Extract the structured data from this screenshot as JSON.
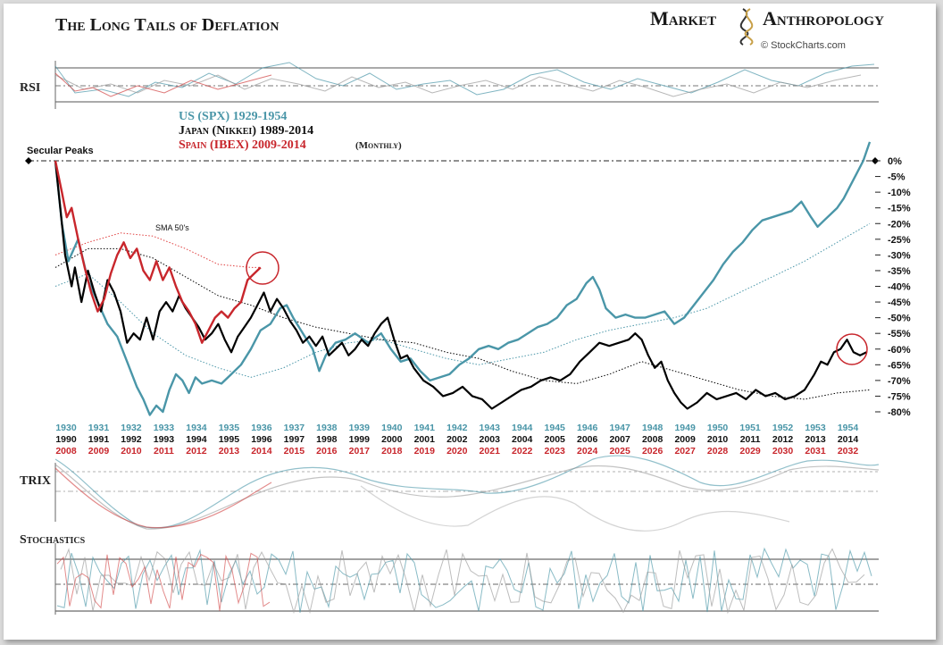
{
  "header": {
    "title": "The Long Tails of Deflation",
    "brand_left": "Market",
    "brand_right": "Anthropology",
    "source": "© StockCharts.com"
  },
  "panels": {
    "rsi": "RSI",
    "trix": "TRIX",
    "stochastics": "Stochastics"
  },
  "legend": {
    "us": "US (SPX) 1929-1954",
    "japan": "Japan (Nikkei) 1989-2014",
    "spain": "Spain (IBEX) 2009-2014",
    "freq": "(Monthly)",
    "secular": "Secular Peaks",
    "sma": "SMA 50's"
  },
  "colors": {
    "us": "#4a96a8",
    "japan": "#000000",
    "spain": "#c8262c",
    "sma_us": "#4a96a8",
    "sma_japan": "#000000",
    "sma_spain": "#e04040"
  },
  "chart_data": {
    "type": "line",
    "ylabel": "",
    "y_ticks": [
      "0%",
      "-5%",
      "-10%",
      "-15%",
      "-20%",
      "-25%",
      "-30%",
      "-35%",
      "-40%",
      "-45%",
      "-50%",
      "-55%",
      "-60%",
      "-65%",
      "-70%",
      "-75%",
      "-80%"
    ],
    "ylim": [
      -80,
      0
    ],
    "x_axis_us": [
      "1930",
      "1931",
      "1932",
      "1933",
      "1934",
      "1935",
      "1936",
      "1937",
      "1938",
      "1939",
      "1940",
      "1941",
      "1942",
      "1943",
      "1944",
      "1945",
      "1946",
      "1947",
      "1948",
      "1949",
      "1950",
      "1951",
      "1952",
      "1953",
      "1954"
    ],
    "x_axis_japan": [
      "1990",
      "1991",
      "1992",
      "1993",
      "1994",
      "1995",
      "1996",
      "1997",
      "1998",
      "1999",
      "2000",
      "2001",
      "2002",
      "2003",
      "2004",
      "2005",
      "2006",
      "2007",
      "2008",
      "2009",
      "2010",
      "2011",
      "2012",
      "2013",
      "2014"
    ],
    "x_axis_spain": [
      "2008",
      "2009",
      "2010",
      "2011",
      "2012",
      "2013",
      "2014",
      "2015",
      "2016",
      "2017",
      "2018",
      "2019",
      "2020",
      "2021",
      "2022",
      "2023",
      "2024",
      "2025",
      "2026",
      "2027",
      "2028",
      "2029",
      "2030",
      "2031",
      "2032"
    ],
    "series": [
      {
        "name": "US (SPX) 1929-1954",
        "points": [
          [
            0,
            0
          ],
          [
            0.2,
            -20
          ],
          [
            0.4,
            -32
          ],
          [
            0.7,
            -25
          ],
          [
            1.0,
            -38
          ],
          [
            1.3,
            -45
          ],
          [
            1.6,
            -52
          ],
          [
            1.9,
            -56
          ],
          [
            2.2,
            -64
          ],
          [
            2.5,
            -72
          ],
          [
            2.7,
            -76
          ],
          [
            2.9,
            -81
          ],
          [
            3.1,
            -78
          ],
          [
            3.3,
            -80
          ],
          [
            3.5,
            -73
          ],
          [
            3.7,
            -68
          ],
          [
            3.9,
            -70
          ],
          [
            4.1,
            -74
          ],
          [
            4.3,
            -69
          ],
          [
            4.5,
            -71
          ],
          [
            4.8,
            -70
          ],
          [
            5.1,
            -71
          ],
          [
            5.4,
            -68
          ],
          [
            5.7,
            -65
          ],
          [
            6.0,
            -60
          ],
          [
            6.3,
            -54
          ],
          [
            6.6,
            -52
          ],
          [
            6.9,
            -47
          ],
          [
            7.1,
            -46
          ],
          [
            7.3,
            -50
          ],
          [
            7.6,
            -55
          ],
          [
            7.9,
            -60
          ],
          [
            8.1,
            -67
          ],
          [
            8.3,
            -62
          ],
          [
            8.6,
            -58
          ],
          [
            8.9,
            -57
          ],
          [
            9.2,
            -55
          ],
          [
            9.6,
            -58
          ],
          [
            10.0,
            -55
          ],
          [
            10.3,
            -60
          ],
          [
            10.6,
            -64
          ],
          [
            10.9,
            -63
          ],
          [
            11.2,
            -67
          ],
          [
            11.5,
            -70
          ],
          [
            11.8,
            -69
          ],
          [
            12.1,
            -68
          ],
          [
            12.4,
            -65
          ],
          [
            12.7,
            -63
          ],
          [
            13.0,
            -60
          ],
          [
            13.3,
            -59
          ],
          [
            13.6,
            -60
          ],
          [
            13.9,
            -58
          ],
          [
            14.2,
            -57
          ],
          [
            14.5,
            -55
          ],
          [
            14.8,
            -53
          ],
          [
            15.1,
            -52
          ],
          [
            15.4,
            -50
          ],
          [
            15.7,
            -46
          ],
          [
            16.0,
            -44
          ],
          [
            16.3,
            -39
          ],
          [
            16.5,
            -37
          ],
          [
            16.7,
            -41
          ],
          [
            16.9,
            -47
          ],
          [
            17.2,
            -50
          ],
          [
            17.5,
            -49
          ],
          [
            17.8,
            -50
          ],
          [
            18.1,
            -50
          ],
          [
            18.4,
            -49
          ],
          [
            18.7,
            -48
          ],
          [
            19.0,
            -52
          ],
          [
            19.3,
            -50
          ],
          [
            19.6,
            -46
          ],
          [
            19.9,
            -42
          ],
          [
            20.2,
            -38
          ],
          [
            20.5,
            -33
          ],
          [
            20.8,
            -29
          ],
          [
            21.1,
            -26
          ],
          [
            21.4,
            -22
          ],
          [
            21.7,
            -19
          ],
          [
            22.0,
            -18
          ],
          [
            22.3,
            -17
          ],
          [
            22.6,
            -16
          ],
          [
            22.9,
            -13
          ],
          [
            23.2,
            -18
          ],
          [
            23.4,
            -21
          ],
          [
            23.6,
            -19
          ],
          [
            23.8,
            -17
          ],
          [
            24.0,
            -15
          ],
          [
            24.2,
            -12
          ],
          [
            24.4,
            -8
          ],
          [
            24.6,
            -4
          ],
          [
            24.8,
            0
          ],
          [
            25.0,
            6
          ]
        ]
      },
      {
        "name": "Japan (Nikkei) 1989-2014",
        "points": [
          [
            0,
            0
          ],
          [
            0.15,
            -15
          ],
          [
            0.3,
            -30
          ],
          [
            0.5,
            -40
          ],
          [
            0.6,
            -34
          ],
          [
            0.8,
            -45
          ],
          [
            1.0,
            -35
          ],
          [
            1.2,
            -42
          ],
          [
            1.4,
            -48
          ],
          [
            1.6,
            -38
          ],
          [
            1.8,
            -42
          ],
          [
            2.0,
            -48
          ],
          [
            2.2,
            -58
          ],
          [
            2.4,
            -55
          ],
          [
            2.6,
            -57
          ],
          [
            2.8,
            -50
          ],
          [
            3.0,
            -57
          ],
          [
            3.2,
            -48
          ],
          [
            3.4,
            -45
          ],
          [
            3.6,
            -48
          ],
          [
            3.8,
            -43
          ],
          [
            4.0,
            -47
          ],
          [
            4.2,
            -50
          ],
          [
            4.4,
            -53
          ],
          [
            4.6,
            -57
          ],
          [
            4.8,
            -55
          ],
          [
            5.0,
            -52
          ],
          [
            5.2,
            -57
          ],
          [
            5.4,
            -61
          ],
          [
            5.6,
            -56
          ],
          [
            5.8,
            -53
          ],
          [
            6.0,
            -50
          ],
          [
            6.2,
            -46
          ],
          [
            6.4,
            -42
          ],
          [
            6.6,
            -48
          ],
          [
            6.8,
            -44
          ],
          [
            7.0,
            -47
          ],
          [
            7.2,
            -51
          ],
          [
            7.4,
            -54
          ],
          [
            7.6,
            -58
          ],
          [
            7.8,
            -56
          ],
          [
            8.0,
            -59
          ],
          [
            8.2,
            -56
          ],
          [
            8.4,
            -62
          ],
          [
            8.6,
            -60
          ],
          [
            8.8,
            -58
          ],
          [
            9.0,
            -62
          ],
          [
            9.2,
            -60
          ],
          [
            9.4,
            -57
          ],
          [
            9.6,
            -59
          ],
          [
            9.8,
            -55
          ],
          [
            10.0,
            -52
          ],
          [
            10.2,
            -50
          ],
          [
            10.4,
            -57
          ],
          [
            10.6,
            -63
          ],
          [
            10.8,
            -62
          ],
          [
            11.0,
            -66
          ],
          [
            11.3,
            -70
          ],
          [
            11.6,
            -72
          ],
          [
            11.9,
            -75
          ],
          [
            12.2,
            -74
          ],
          [
            12.5,
            -72
          ],
          [
            12.8,
            -75
          ],
          [
            13.1,
            -76
          ],
          [
            13.4,
            -79
          ],
          [
            13.7,
            -77
          ],
          [
            14.0,
            -75
          ],
          [
            14.3,
            -73
          ],
          [
            14.6,
            -72
          ],
          [
            14.9,
            -70
          ],
          [
            15.2,
            -69
          ],
          [
            15.5,
            -70
          ],
          [
            15.8,
            -68
          ],
          [
            16.1,
            -64
          ],
          [
            16.4,
            -61
          ],
          [
            16.7,
            -58
          ],
          [
            17.0,
            -59
          ],
          [
            17.3,
            -58
          ],
          [
            17.6,
            -57
          ],
          [
            17.8,
            -55
          ],
          [
            18.0,
            -57
          ],
          [
            18.2,
            -62
          ],
          [
            18.4,
            -66
          ],
          [
            18.6,
            -64
          ],
          [
            18.8,
            -70
          ],
          [
            19.0,
            -74
          ],
          [
            19.2,
            -77
          ],
          [
            19.4,
            -79
          ],
          [
            19.7,
            -77
          ],
          [
            20.0,
            -74
          ],
          [
            20.3,
            -76
          ],
          [
            20.6,
            -75
          ],
          [
            20.9,
            -74
          ],
          [
            21.2,
            -76
          ],
          [
            21.5,
            -73
          ],
          [
            21.8,
            -75
          ],
          [
            22.1,
            -74
          ],
          [
            22.4,
            -76
          ],
          [
            22.7,
            -75
          ],
          [
            23.0,
            -73
          ],
          [
            23.3,
            -68
          ],
          [
            23.5,
            -64
          ],
          [
            23.7,
            -65
          ],
          [
            23.9,
            -61
          ],
          [
            24.1,
            -60
          ],
          [
            24.3,
            -57
          ],
          [
            24.5,
            -61
          ],
          [
            24.7,
            -62
          ],
          [
            24.9,
            -61
          ]
        ]
      },
      {
        "name": "Spain (IBEX) 2009-2014",
        "points": [
          [
            0,
            0
          ],
          [
            0.2,
            -10
          ],
          [
            0.35,
            -18
          ],
          [
            0.5,
            -15
          ],
          [
            0.7,
            -25
          ],
          [
            0.9,
            -34
          ],
          [
            1.1,
            -42
          ],
          [
            1.3,
            -48
          ],
          [
            1.5,
            -44
          ],
          [
            1.7,
            -36
          ],
          [
            1.9,
            -30
          ],
          [
            2.1,
            -26
          ],
          [
            2.3,
            -31
          ],
          [
            2.5,
            -28
          ],
          [
            2.7,
            -35
          ],
          [
            2.9,
            -38
          ],
          [
            3.1,
            -32
          ],
          [
            3.3,
            -38
          ],
          [
            3.5,
            -34
          ],
          [
            3.7,
            -40
          ],
          [
            3.9,
            -45
          ],
          [
            4.1,
            -48
          ],
          [
            4.3,
            -52
          ],
          [
            4.5,
            -58
          ],
          [
            4.7,
            -54
          ],
          [
            4.9,
            -50
          ],
          [
            5.1,
            -48
          ],
          [
            5.3,
            -50
          ],
          [
            5.5,
            -47
          ],
          [
            5.7,
            -45
          ],
          [
            5.9,
            -38
          ],
          [
            6.1,
            -36
          ],
          [
            6.3,
            -34
          ]
        ]
      },
      {
        "name": "SMA US",
        "points": [
          [
            0,
            -40
          ],
          [
            1,
            -36
          ],
          [
            2,
            -45
          ],
          [
            3,
            -55
          ],
          [
            4,
            -62
          ],
          [
            5,
            -66
          ],
          [
            6,
            -69
          ],
          [
            7,
            -66
          ],
          [
            8,
            -61
          ],
          [
            9,
            -58
          ],
          [
            10,
            -57
          ],
          [
            11,
            -60
          ],
          [
            12,
            -63
          ],
          [
            13,
            -65
          ],
          [
            14,
            -63
          ],
          [
            15,
            -61
          ],
          [
            16,
            -57
          ],
          [
            17,
            -54
          ],
          [
            18,
            -52
          ],
          [
            19,
            -50
          ],
          [
            20,
            -47
          ],
          [
            21,
            -42
          ],
          [
            22,
            -37
          ],
          [
            23,
            -32
          ],
          [
            24,
            -26
          ],
          [
            25,
            -20
          ]
        ]
      },
      {
        "name": "SMA Japan",
        "points": [
          [
            0,
            -34
          ],
          [
            1,
            -28
          ],
          [
            2,
            -28
          ],
          [
            3,
            -31
          ],
          [
            4,
            -37
          ],
          [
            5,
            -43
          ],
          [
            6,
            -46
          ],
          [
            7,
            -50
          ],
          [
            8,
            -53
          ],
          [
            9,
            -55
          ],
          [
            10,
            -57
          ],
          [
            11,
            -58
          ],
          [
            12,
            -61
          ],
          [
            13,
            -63
          ],
          [
            14,
            -67
          ],
          [
            15,
            -70
          ],
          [
            16,
            -71
          ],
          [
            17,
            -68
          ],
          [
            18,
            -64
          ],
          [
            19,
            -67
          ],
          [
            20,
            -70
          ],
          [
            21,
            -73
          ],
          [
            22,
            -75
          ],
          [
            23,
            -76
          ],
          [
            24,
            -74
          ],
          [
            25,
            -73
          ]
        ]
      },
      {
        "name": "SMA Spain",
        "points": [
          [
            0,
            -30
          ],
          [
            1,
            -26
          ],
          [
            2,
            -23
          ],
          [
            3,
            -24
          ],
          [
            4,
            -28
          ],
          [
            5,
            -33
          ],
          [
            6,
            -34
          ],
          [
            6.3,
            -34
          ]
        ]
      }
    ]
  }
}
